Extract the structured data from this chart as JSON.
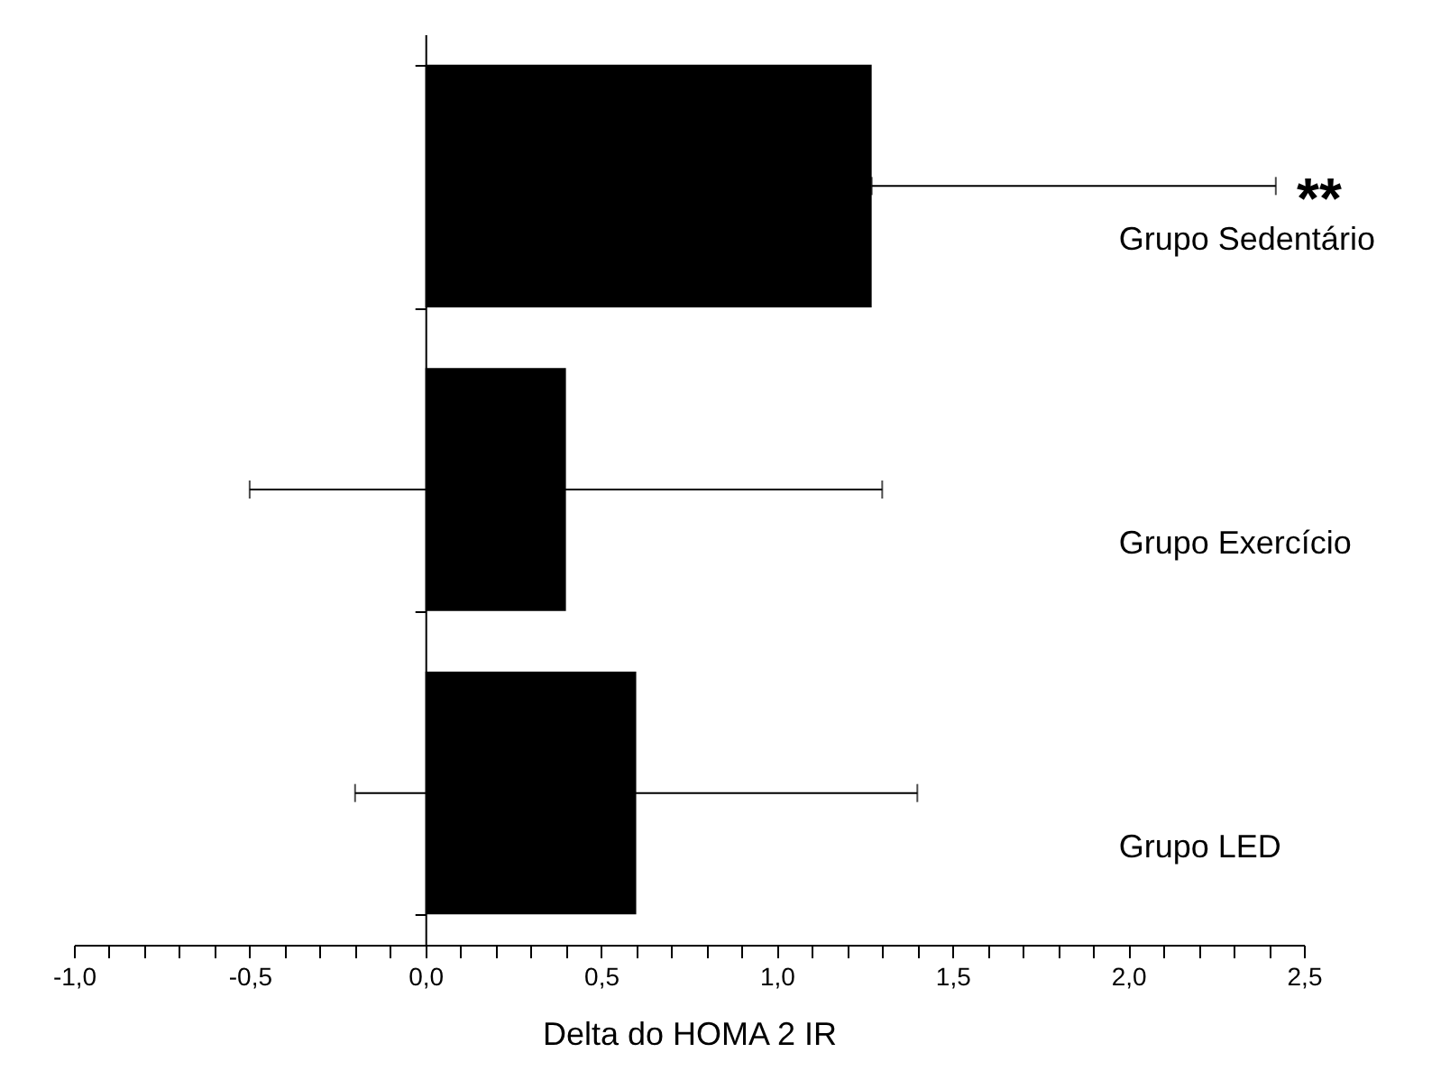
{
  "chart_data": {
    "type": "bar",
    "orientation": "horizontal",
    "xlabel": "Delta do HOMA 2 IR",
    "categories": [
      "Grupo Sedentário",
      "Grupo Exercício",
      "Grupo LED"
    ],
    "values": [
      1.27,
      0.4,
      0.6
    ],
    "errors": [
      [
        1.27,
        2.42
      ],
      [
        -0.5,
        1.3
      ],
      [
        -0.2,
        1.4
      ]
    ],
    "color": "#000000",
    "xlim": [
      -1.0,
      2.5
    ],
    "xticks": [
      {
        "value": -1.0,
        "label": "-1,0"
      },
      {
        "value": -0.9,
        "label": null
      },
      {
        "value": -0.8,
        "label": null
      },
      {
        "value": -0.7,
        "label": null
      },
      {
        "value": -0.6,
        "label": null
      },
      {
        "value": -0.5,
        "label": "-0,5"
      },
      {
        "value": -0.4,
        "label": null
      },
      {
        "value": -0.3,
        "label": null
      },
      {
        "value": -0.2,
        "label": null
      },
      {
        "value": -0.1,
        "label": null
      },
      {
        "value": 0.0,
        "label": "0,0"
      },
      {
        "value": 0.1,
        "label": null
      },
      {
        "value": 0.2,
        "label": null
      },
      {
        "value": 0.3,
        "label": null
      },
      {
        "value": 0.4,
        "label": null
      },
      {
        "value": 0.5,
        "label": "0,5"
      },
      {
        "value": 0.6,
        "label": null
      },
      {
        "value": 0.7,
        "label": null
      },
      {
        "value": 0.8,
        "label": null
      },
      {
        "value": 0.9,
        "label": null
      },
      {
        "value": 1.0,
        "label": "1,0"
      },
      {
        "value": 1.1,
        "label": null
      },
      {
        "value": 1.2,
        "label": null
      },
      {
        "value": 1.3,
        "label": null
      },
      {
        "value": 1.4,
        "label": null
      },
      {
        "value": 1.5,
        "label": "1,5"
      },
      {
        "value": 1.6,
        "label": null
      },
      {
        "value": 1.7,
        "label": null
      },
      {
        "value": 1.8,
        "label": null
      },
      {
        "value": 1.9,
        "label": null
      },
      {
        "value": 2.0,
        "label": "2,0"
      },
      {
        "value": 2.1,
        "label": null
      },
      {
        "value": 2.2,
        "label": null
      },
      {
        "value": 2.3,
        "label": null
      },
      {
        "value": 2.4,
        "label": null
      },
      {
        "value": 2.5,
        "label": "2,5"
      }
    ],
    "annotations": [
      "**"
    ]
  }
}
